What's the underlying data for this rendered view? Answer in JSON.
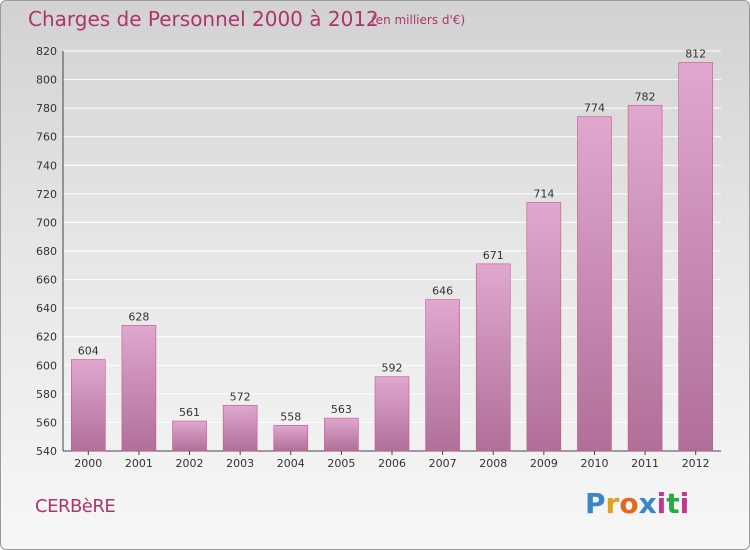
{
  "header": {
    "title": "Charges de Personnel 2000 à 2012",
    "subtitle": "(en milliers d'€)"
  },
  "footer": {
    "city": "CERBèRE",
    "logo": [
      "P",
      "r",
      "o",
      "x",
      "i",
      "t",
      "i"
    ],
    "logo_colors": [
      "#3a86c8",
      "#e0a020",
      "#e06820",
      "#3a86c8",
      "#c0398a",
      "#2aa84a",
      "#c0398a"
    ]
  },
  "colors": {
    "bar_top": "#e0a8cf",
    "bar_bottom": "#b06f98",
    "bar_edge": "#c9558c",
    "title": "#b0336b"
  },
  "chart_data": {
    "type": "bar",
    "title": "Charges de Personnel 2000 à 2012",
    "subtitle": "(en milliers d'€)",
    "xlabel": "",
    "ylabel": "",
    "categories": [
      "2000",
      "2001",
      "2002",
      "2003",
      "2004",
      "2005",
      "2006",
      "2007",
      "2008",
      "2009",
      "2010",
      "2011",
      "2012"
    ],
    "values": [
      604,
      628,
      561,
      572,
      558,
      563,
      592,
      646,
      671,
      714,
      774,
      782,
      812
    ],
    "ylim": [
      540,
      820
    ],
    "yticks": [
      540,
      560,
      580,
      600,
      620,
      640,
      660,
      680,
      700,
      720,
      740,
      760,
      780,
      800,
      820
    ],
    "grid": true
  }
}
